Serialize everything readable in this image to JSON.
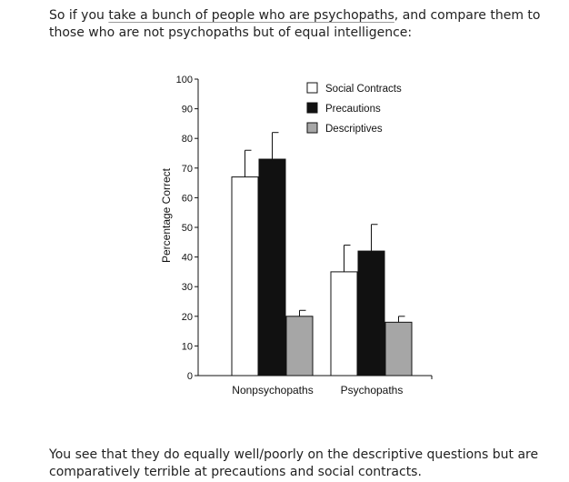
{
  "article": {
    "intro_prefix": "So if you",
    "intro_link": "take a bunch of people who are psychopaths",
    "intro_suffix": ", and compare them to those who are not psychopaths but of equal intelligence:",
    "outro": "You see that they do equally well/poorly on the descriptive questions but are comparatively terrible at precautions and social contracts."
  },
  "chart_data": {
    "type": "bar",
    "title": "",
    "xlabel": "",
    "ylabel": "Percentage Correct",
    "ylim": [
      0,
      100
    ],
    "yticks": [
      0,
      10,
      20,
      30,
      40,
      50,
      60,
      70,
      80,
      90,
      100
    ],
    "categories": [
      "Nonpsychopaths",
      "Psychopaths"
    ],
    "series": [
      {
        "name": "Social Contracts",
        "values": [
          67,
          35
        ],
        "error": [
          76,
          44
        ],
        "color": "#ffffff"
      },
      {
        "name": "Precautions",
        "values": [
          73,
          42
        ],
        "error": [
          82,
          51
        ],
        "color": "#111111"
      },
      {
        "name": "Descriptives",
        "values": [
          20,
          18
        ],
        "error": [
          22,
          20
        ],
        "color": "#a6a6a6"
      }
    ],
    "legend": "top-right",
    "grid": false
  }
}
